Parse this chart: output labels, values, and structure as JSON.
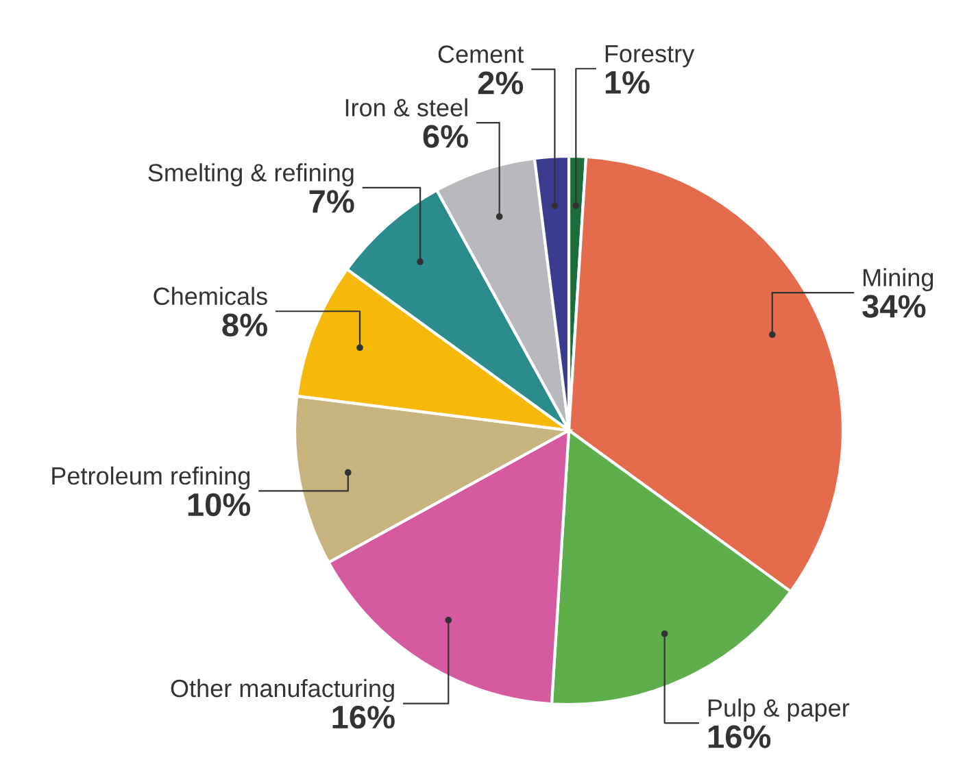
{
  "chart_data": {
    "type": "pie",
    "categories": [
      "Forestry",
      "Mining",
      "Pulp & paper",
      "Other manufacturing",
      "Petroleum refining",
      "Chemicals",
      "Smelting & refining",
      "Iron & steel",
      "Cement"
    ],
    "values": [
      1,
      34,
      16,
      16,
      10,
      8,
      7,
      6,
      2
    ],
    "value_labels": [
      "1%",
      "34%",
      "16%",
      "16%",
      "10%",
      "8%",
      "7%",
      "6%",
      "2%"
    ],
    "colors": [
      "#1b6e3c",
      "#e46c4c",
      "#5fae4c",
      "#d65aa0",
      "#c8b47e",
      "#f6b90a",
      "#2a8c8c",
      "#b9b9bd",
      "#3b3b92"
    ]
  }
}
